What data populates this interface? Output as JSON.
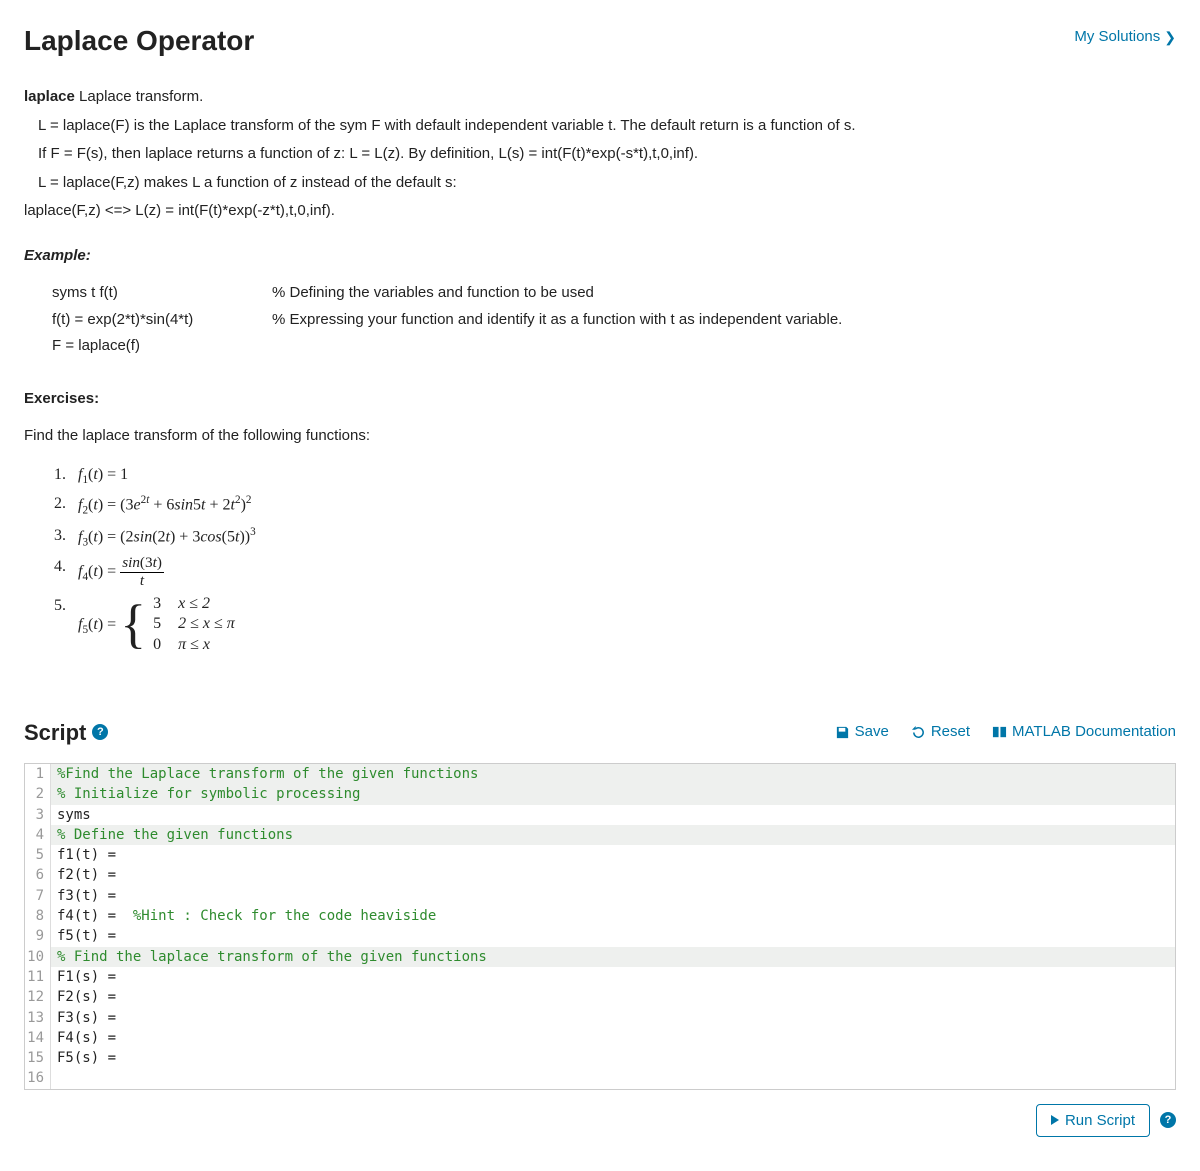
{
  "colors": {
    "accent": "#0076a8",
    "comment": "#2e8b2e",
    "comment_bg": "#eef0ee",
    "border": "#cccccc",
    "gutter_text": "#999999"
  },
  "header": {
    "title": "Laplace Operator",
    "my_solutions": "My Solutions"
  },
  "description": {
    "lead_bold": "laplace",
    "lead_rest": " Laplace transform.",
    "lines": [
      "L = laplace(F) is the Laplace transform of the sym F with default independent variable t.  The default return is a function of s.",
      "If F = F(s), then laplace returns a function of z:  L = L(z).     By definition, L(s) = int(F(t)*exp(-s*t),t,0,inf).",
      " L = laplace(F,z) makes L a function of z instead of the default s:",
      "laplace(F,z) <=> L(z) = int(F(t)*exp(-z*t),t,0,inf)."
    ]
  },
  "example": {
    "heading": "Example:",
    "rows": [
      {
        "code": "syms t f(t)",
        "note": "% Defining the variables and function to be used"
      },
      {
        "code": "f(t) = exp(2*t)*sin(4*t)",
        "note": "% Expressing your function and identify it as a function with t as independent variable."
      },
      {
        "code": "F = laplace(f)",
        "note": ""
      }
    ]
  },
  "exercises": {
    "heading": "Exercises:",
    "intro": "Find the laplace transform of the following functions:",
    "items": [
      {
        "n": "1.",
        "expr_text": "f1(t) = 1"
      },
      {
        "n": "2.",
        "expr_text": "f2(t) = (3e^{2t} + 6sin5t + 2t^2)^2"
      },
      {
        "n": "3.",
        "expr_text": "f3(t) = (2sin(2t) + 3cos(5t))^3"
      },
      {
        "n": "4.",
        "expr_text": "f4(t) = sin(3t)/t"
      },
      {
        "n": "5.",
        "expr_text": "f5(t) = piecewise(3 if x<=2, 5 if 2<=x<=pi, 0 if pi<=x)",
        "piecewise": [
          {
            "val": "3",
            "cond": "x ≤ 2"
          },
          {
            "val": "5",
            "cond": "2 ≤ x ≤ π"
          },
          {
            "val": "0",
            "cond": "π ≤ x"
          }
        ]
      }
    ]
  },
  "script": {
    "title": "Script",
    "actions": {
      "save": "Save",
      "reset": "Reset",
      "docs": "MATLAB Documentation"
    },
    "lines": [
      {
        "n": 1,
        "is_comment": true,
        "text": "%Find the Laplace transform of the given functions"
      },
      {
        "n": 2,
        "is_comment": true,
        "text": "% Initialize for symbolic processing"
      },
      {
        "n": 3,
        "is_comment": false,
        "text": "syms"
      },
      {
        "n": 4,
        "is_comment": true,
        "text": "% Define the given functions"
      },
      {
        "n": 5,
        "is_comment": false,
        "text": "f1(t) = "
      },
      {
        "n": 6,
        "is_comment": false,
        "text": "f2(t) = "
      },
      {
        "n": 7,
        "is_comment": false,
        "text": "f3(t) = "
      },
      {
        "n": 8,
        "is_comment": false,
        "text": "f4(t) =  ",
        "trailing_comment": "%Hint : Check for the code heaviside"
      },
      {
        "n": 9,
        "is_comment": false,
        "text": "f5(t) = "
      },
      {
        "n": 10,
        "is_comment": true,
        "text": "% Find the laplace transform of the given functions"
      },
      {
        "n": 11,
        "is_comment": false,
        "text": "F1(s) = "
      },
      {
        "n": 12,
        "is_comment": false,
        "text": "F2(s) = "
      },
      {
        "n": 13,
        "is_comment": false,
        "text": "F3(s) = "
      },
      {
        "n": 14,
        "is_comment": false,
        "text": "F4(s) = "
      },
      {
        "n": 15,
        "is_comment": false,
        "text": "F5(s) = "
      },
      {
        "n": 16,
        "is_comment": false,
        "text": ""
      }
    ]
  },
  "footer": {
    "run": "Run Script"
  }
}
